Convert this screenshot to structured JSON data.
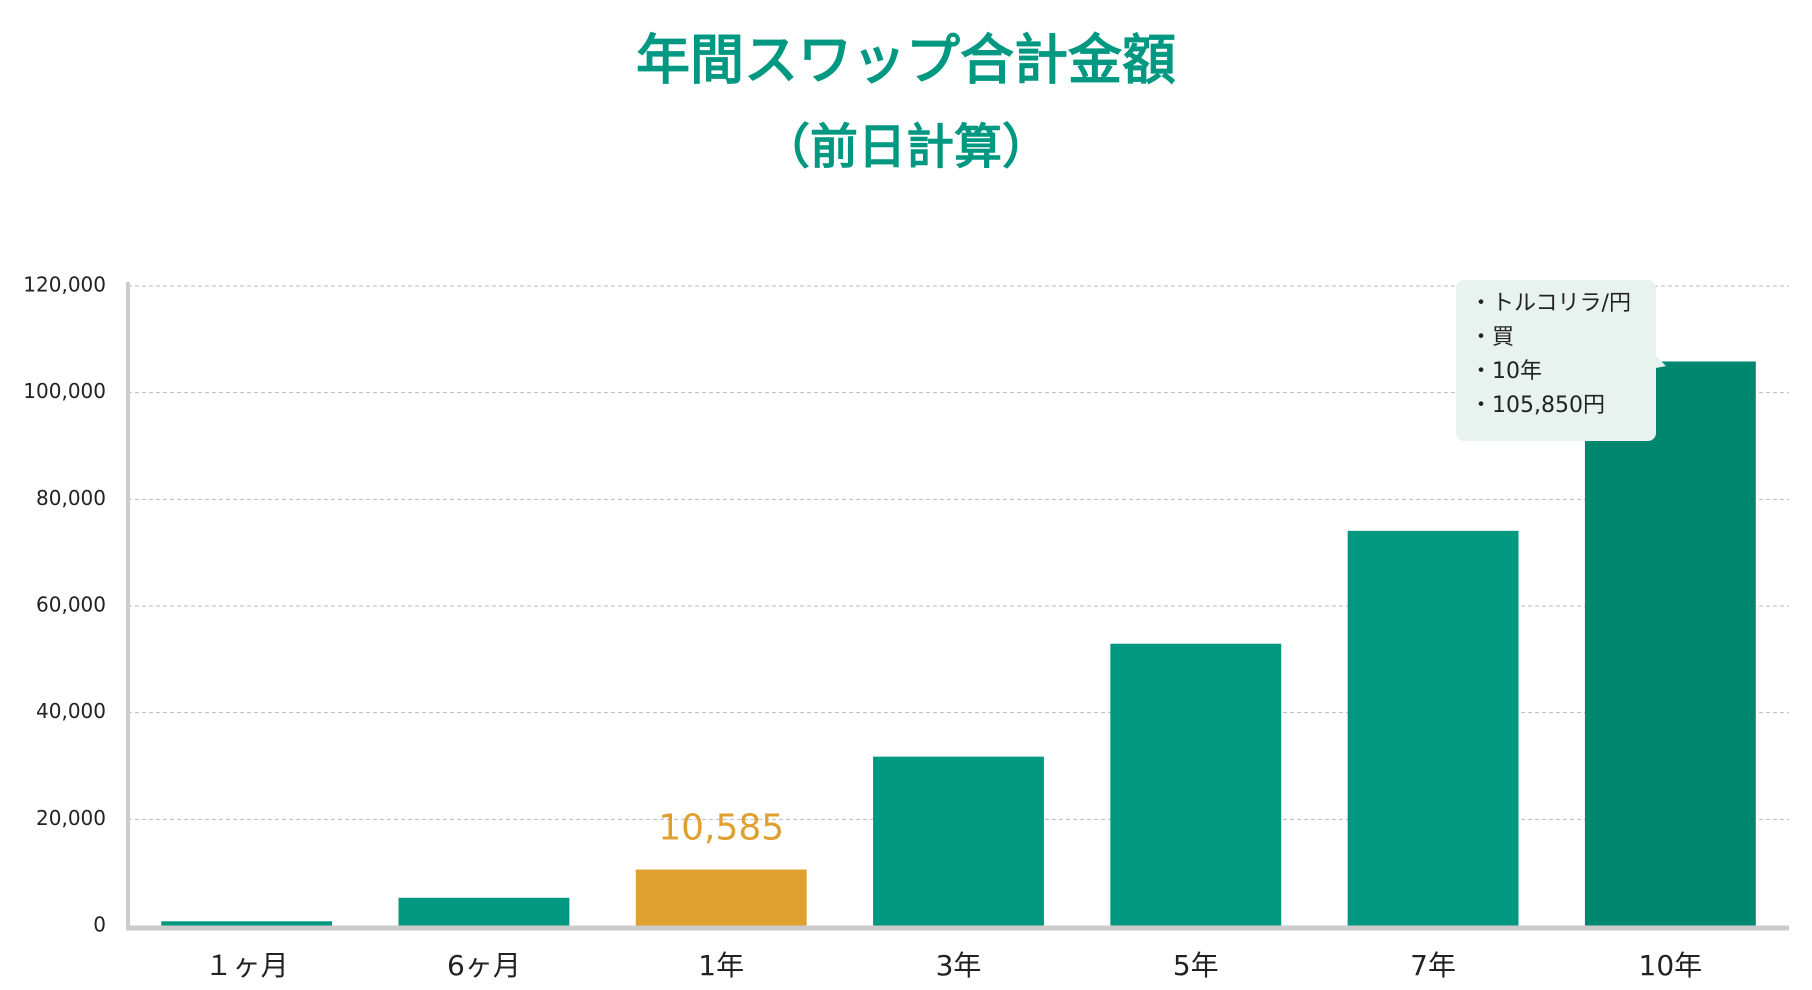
{
  "chart_data": {
    "type": "bar",
    "title": "年間スワップ合計金額",
    "subtitle": "（前日計算）",
    "categories": [
      "１ヶ月",
      "6ヶ月",
      "1年",
      "3年",
      "5年",
      "7年",
      "10年"
    ],
    "values": [
      882,
      5292,
      10585,
      31755,
      52925,
      74095,
      105850
    ],
    "value_labels": [
      null,
      null,
      "10,585",
      null,
      null,
      null,
      null
    ],
    "colors": [
      "#009881",
      "#009881",
      "#e0a030",
      "#009881",
      "#009881",
      "#009881",
      "#00876f"
    ],
    "value_label_color": "#e0a030",
    "ylim": [
      0,
      120000
    ],
    "yticks": [
      0,
      {
        "value": 20000,
        "label": "20,000"
      },
      {
        "value": 40000,
        "label": "40,000"
      },
      {
        "value": 60000,
        "label": "60,000"
      },
      {
        "value": 80000,
        "label": "80,000"
      },
      {
        "value": 100000,
        "label": "100,000"
      },
      {
        "value": 120000,
        "label": "120,000"
      }
    ],
    "grid": true,
    "tooltip": {
      "lines": [
        "・トルコリラ/円",
        "・買",
        "・10年",
        "・105,850円"
      ]
    }
  }
}
